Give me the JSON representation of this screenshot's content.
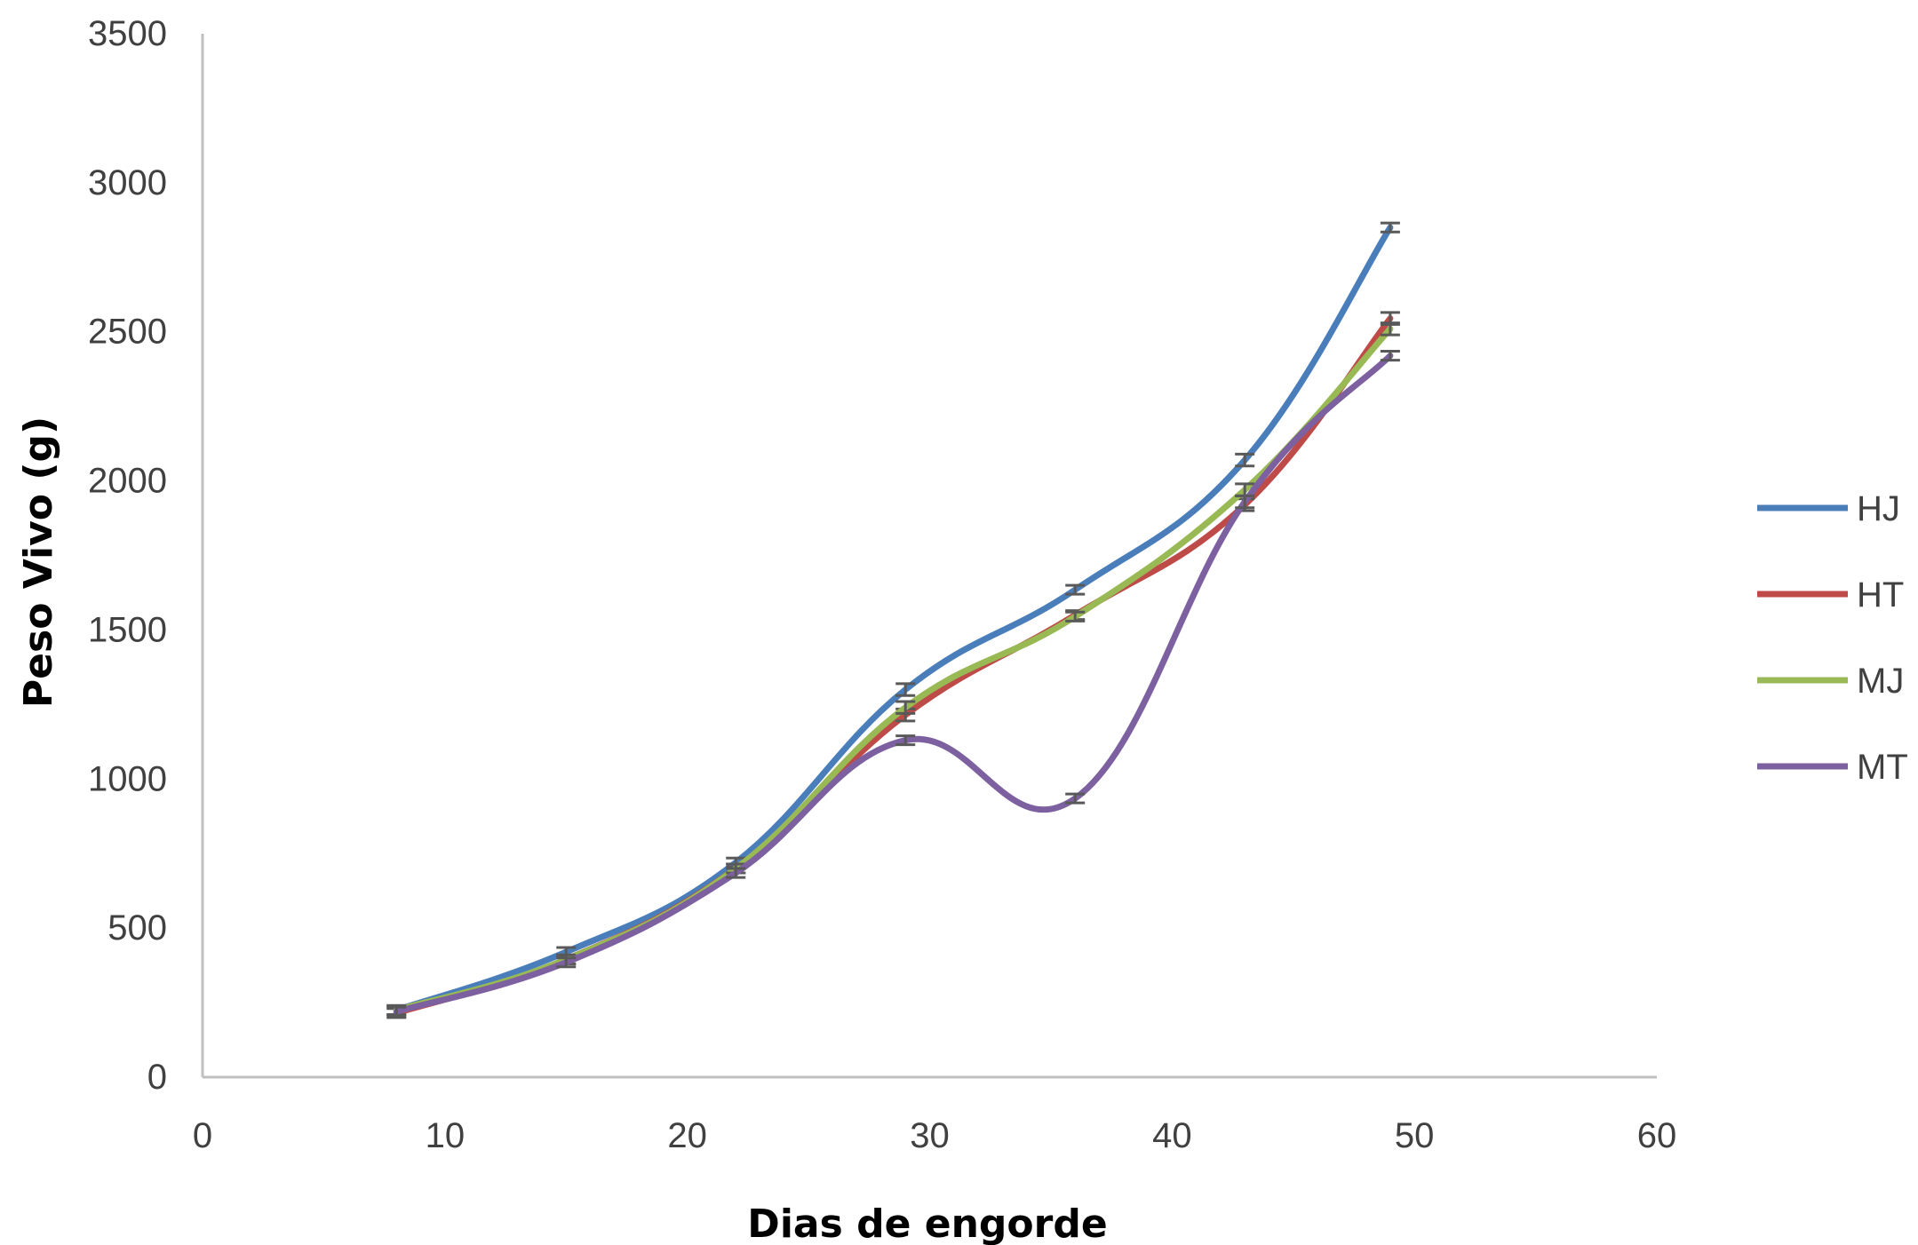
{
  "chart_data": {
    "type": "line",
    "title": "",
    "xlabel": "Dias de engorde",
    "ylabel": "Peso Vivo (g)",
    "xlim": [
      0,
      60
    ],
    "ylim": [
      0,
      3500
    ],
    "xticks": [
      "0",
      "10",
      "20",
      "30",
      "40",
      "50",
      "60"
    ],
    "yticks": [
      "0",
      "500",
      "1000",
      "1500",
      "2000",
      "2500",
      "3000",
      "3500"
    ],
    "grid": false,
    "smooth": true,
    "error_bars": true,
    "legend_position": "right",
    "x": [
      8,
      15,
      22,
      29,
      36,
      43,
      49
    ],
    "series": [
      {
        "name": "HJ",
        "color": "#4a7ebb",
        "values": [
          225,
          420,
          720,
          1300,
          1635,
          2070,
          2850
        ],
        "errors": [
          15,
          15,
          15,
          20,
          15,
          20,
          15
        ]
      },
      {
        "name": "HT",
        "color": "#be4b48",
        "values": [
          215,
          395,
          700,
          1215,
          1550,
          1920,
          2545
        ],
        "errors": [
          15,
          15,
          15,
          20,
          15,
          20,
          20
        ]
      },
      {
        "name": "MJ",
        "color": "#98b954",
        "values": [
          225,
          395,
          700,
          1240,
          1545,
          1970,
          2510
        ],
        "errors": [
          15,
          15,
          15,
          20,
          15,
          20,
          20
        ]
      },
      {
        "name": "MT",
        "color": "#7d60a0",
        "values": [
          220,
          385,
          685,
          1130,
          935,
          1930,
          2420
        ],
        "errors": [
          15,
          15,
          15,
          15,
          15,
          20,
          15
        ]
      }
    ]
  }
}
